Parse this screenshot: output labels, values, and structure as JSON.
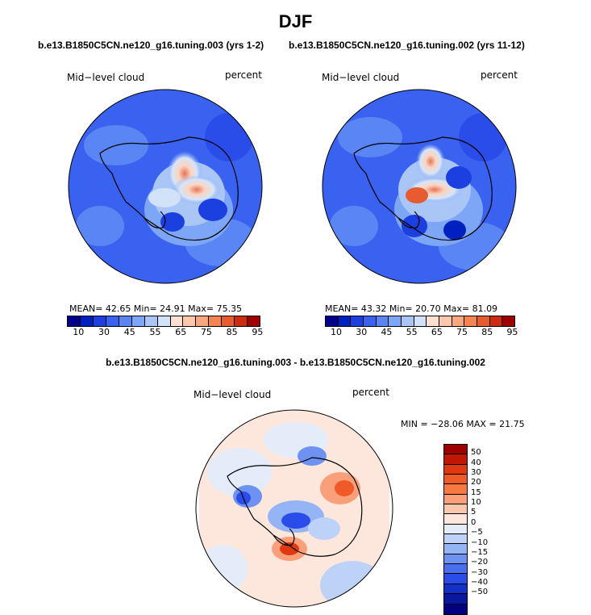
{
  "title": "DJF",
  "case1_label": "b.e13.B1850C5CN.ne120_g16.tuning.003 (yrs 1-2)",
  "case2_label": "b.e13.B1850C5CN.ne120_g16.tuning.002 (yrs 11-12)",
  "diff_label": "b.e13.B1850C5CN.ne120_g16.tuning.003 - b.e13.B1850C5CN.ne120_g16.tuning.002",
  "panels": [
    {
      "var_label": "Mid−level cloud",
      "units": "percent",
      "stats": "MEAN=   42.65   Min=   24.91   Max=   75.35"
    },
    {
      "var_label": "Mid−level cloud",
      "units": "percent",
      "stats": "MEAN=   43.32   Min=   20.70   Max=   81.09"
    },
    {
      "var_label": "Mid−level cloud",
      "units": "percent",
      "stats": "MIN = −28.06  MAX =   21.75"
    }
  ],
  "colorbar": {
    "colors": [
      "#00008b",
      "#0020c0",
      "#1c3fe0",
      "#3a62f0",
      "#5a85f5",
      "#7ea6f7",
      "#a9c6f7",
      "#d2e2f8",
      "#ffe0d0",
      "#fcc7aa",
      "#f9a87e",
      "#f48552",
      "#e85a30",
      "#cc2c14",
      "#9e0000"
    ],
    "ticks": [
      "10",
      "30",
      "45",
      "55",
      "65",
      "75",
      "85",
      "95"
    ]
  },
  "diff_colorbar": {
    "colors": [
      "#9e0000",
      "#c01800",
      "#e03810",
      "#f05a28",
      "#f67a40",
      "#f9a07a",
      "#fcc7aa",
      "#fde7dc",
      "#e4ecf9",
      "#bcd2f7",
      "#94b4f5",
      "#6e92f2",
      "#4a6ef0",
      "#2a4ce8",
      "#1430c8",
      "#0a18a0",
      "#000080"
    ],
    "ticks": [
      "50",
      "40",
      "30",
      "20",
      "15",
      "10",
      "5",
      "0",
      "−5",
      "−10",
      "−15",
      "−20",
      "−30",
      "−40",
      "−50"
    ]
  }
}
